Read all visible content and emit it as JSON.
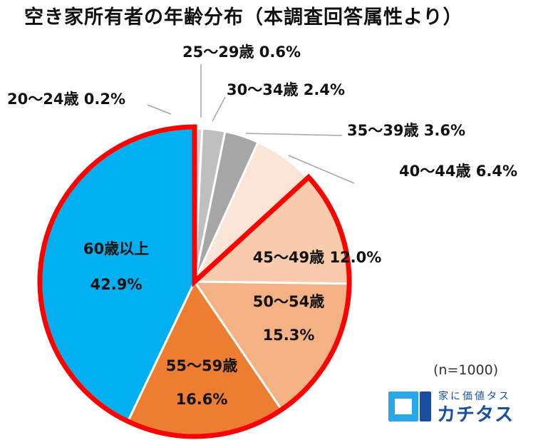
{
  "chart_data": {
    "type": "pie",
    "title": "空き家所有者の年齢分布（本調査回答属性より）",
    "slices": [
      {
        "label": "20～24歳",
        "value": 0.2,
        "value_label": "0.2%",
        "color": "#d9d9d9"
      },
      {
        "label": "25～29歳",
        "value": 0.6,
        "value_label": "0.6%",
        "color": "#d3d3d3"
      },
      {
        "label": "30～34歳",
        "value": 2.4,
        "value_label": "2.4%",
        "color": "#bfbfbf"
      },
      {
        "label": "35～39歳",
        "value": 3.6,
        "value_label": "3.6%",
        "color": "#a6a6a6"
      },
      {
        "label": "40～44歳",
        "value": 6.4,
        "value_label": "6.4%",
        "color": "#fbe5d6"
      },
      {
        "label": "45～49歳",
        "value": 12.0,
        "value_label": "12.0%",
        "color": "#f8cbad"
      },
      {
        "label": "50～54歳",
        "value": 15.3,
        "value_label": "15.3%",
        "color": "#f4b183"
      },
      {
        "label": "55～59歳",
        "value": 16.6,
        "value_label": "16.6%",
        "color": "#ed7d31"
      },
      {
        "label": "60歳以上",
        "value": 42.9,
        "value_label": "42.9%",
        "color": "#00b0f0"
      }
    ],
    "highlight": {
      "from": "45～49歳",
      "to": "60歳以上",
      "color": "#ff0000"
    },
    "sample_note": "(n=1000)",
    "legend": "none"
  },
  "logo": {
    "tagline": "家に価値タス",
    "name": "カチタス",
    "color": "#1a4fa0"
  }
}
